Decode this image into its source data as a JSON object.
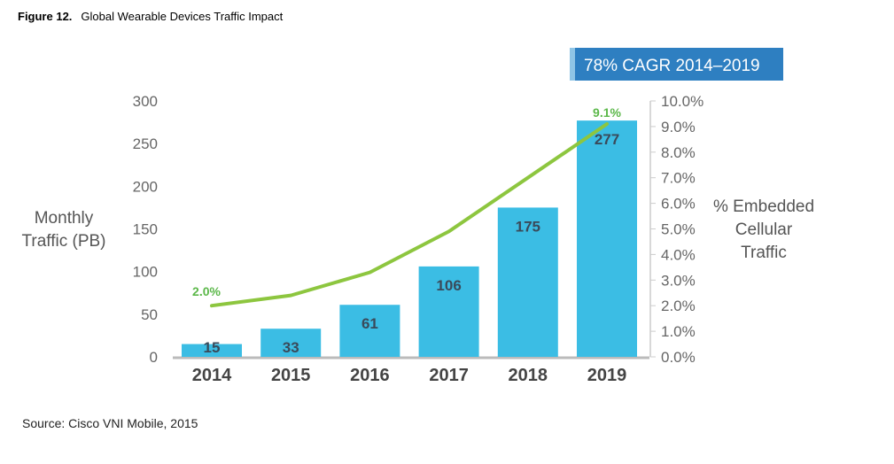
{
  "figure_label": "Figure 12.",
  "title": "Global Wearable Devices Traffic Impact",
  "source": "Source: Cisco VNI Mobile, 2015",
  "chart_data": {
    "type": "bar+line",
    "title": "Global Wearable Devices Traffic Impact",
    "annotation": "78% CAGR 2014–2019",
    "categories": [
      "2014",
      "2015",
      "2016",
      "2017",
      "2018",
      "2019"
    ],
    "series": [
      {
        "type": "bar",
        "axis": "left",
        "values": [
          15,
          33,
          61,
          106,
          175,
          277
        ],
        "labels": [
          "15",
          "33",
          "61",
          "106",
          "175",
          "277"
        ],
        "color": "#3bbde4"
      },
      {
        "type": "line",
        "axis": "right",
        "values": [
          2.0,
          2.4,
          3.3,
          4.9,
          7.0,
          9.1
        ],
        "end_labels": [
          "2.0%",
          "9.1%"
        ],
        "color": "#8dc63f"
      }
    ],
    "ylabel_left": "Monthly Traffic (PB)",
    "ylabel_right": "% Embedded Cellular Traffic",
    "ylim_left": [
      0,
      300
    ],
    "yticks_left": [
      "0",
      "50",
      "100",
      "150",
      "200",
      "250",
      "300"
    ],
    "ylim_right": [
      0,
      10
    ],
    "yticks_right": [
      "0.0%",
      "1.0%",
      "2.0%",
      "3.0%",
      "4.0%",
      "5.0%",
      "6.0%",
      "7.0%",
      "8.0%",
      "9.0%",
      "10.0%"
    ],
    "grid": false,
    "colors": {
      "bar": "#3bbde4",
      "line": "#8dc63f",
      "label_green": "#5cb84a",
      "cagr_box": "#2e7fc1"
    }
  }
}
